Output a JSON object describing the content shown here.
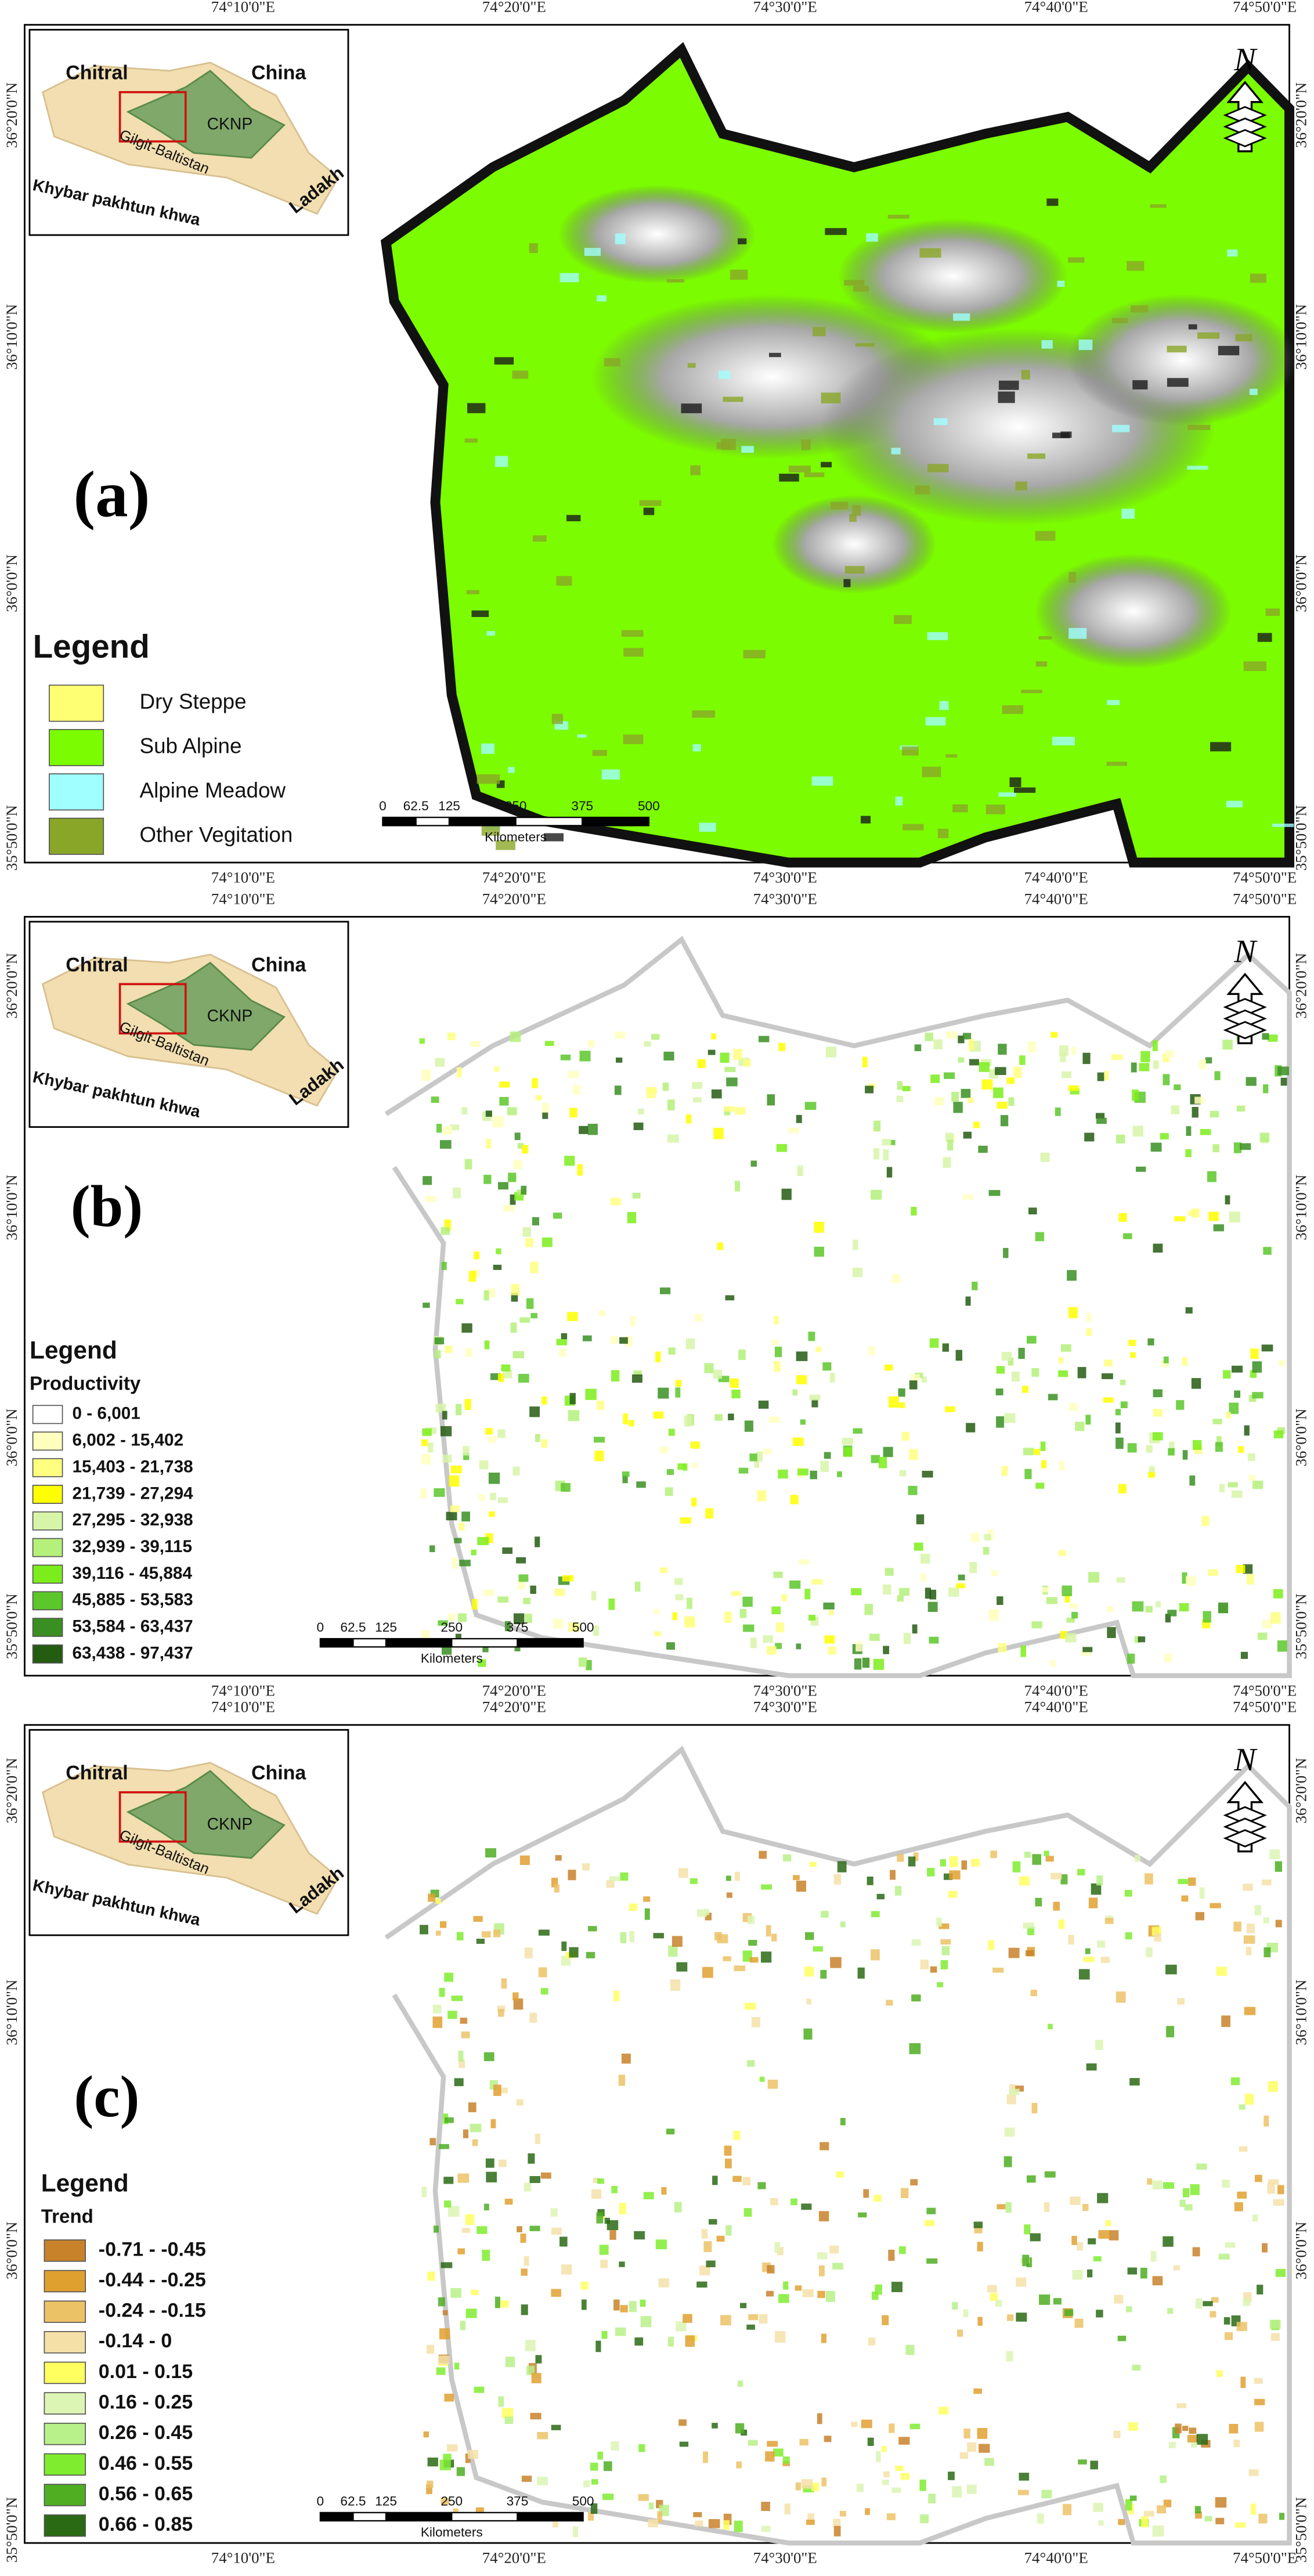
{
  "longitudes": [
    "74°10'0\"E",
    "74°20'0\"E",
    "74°30'0\"E",
    "74°40'0\"E",
    "74°50'0\"E"
  ],
  "latitudes": [
    "36°20'0\"N",
    "36°10'0\"N",
    "36°0'0\"N",
    "35°50'0\"N"
  ],
  "inset_labels": [
    "Chitral",
    "China",
    "CKNP",
    "Gilgit-Baltistan",
    "Khybar pakhtun khwa",
    "Ladakh"
  ],
  "scale_bar": {
    "ticks": [
      "0",
      "62.5",
      "125",
      "250",
      "375",
      "500"
    ],
    "unit": "Kilometers"
  },
  "north": "N",
  "panels": [
    {
      "label": "(a)",
      "legend": {
        "title": "Legend",
        "items": [
          {
            "label": "Dry Steppe",
            "color": "#ffff73"
          },
          {
            "label": "Sub Alpine",
            "color": "#7cfc00"
          },
          {
            "label": "Alpine Meadow",
            "color": "#a0ffff"
          },
          {
            "label": "Other Vegitation",
            "color": "#8aa628"
          }
        ]
      }
    },
    {
      "label": "(b)",
      "legend": {
        "title": "Legend",
        "subtitle": "Productivity",
        "items": [
          {
            "label": "0 - 6,001",
            "color": "#ffffff"
          },
          {
            "label": "6,002 - 15,402",
            "color": "#ffffbe"
          },
          {
            "label": "15,403 - 21,738",
            "color": "#ffff80"
          },
          {
            "label": "21,739 - 27,294",
            "color": "#ffff00"
          },
          {
            "label": "27,295 - 32,938",
            "color": "#d7f5a8"
          },
          {
            "label": "32,939 - 39,115",
            "color": "#b4f07a"
          },
          {
            "label": "39,116 - 45,884",
            "color": "#7ced1c"
          },
          {
            "label": "45,885 - 53,583",
            "color": "#5cc72a"
          },
          {
            "label": "53,584 - 63,437",
            "color": "#3a8f22"
          },
          {
            "label": "63,438 - 97,437",
            "color": "#245c12"
          }
        ]
      }
    },
    {
      "label": "(c)",
      "legend": {
        "title": "Legend",
        "subtitle": "Trend",
        "items": [
          {
            "label": "-0.71 - -0.45",
            "color": "#c8822a"
          },
          {
            "label": "-0.44 - -0.25",
            "color": "#e0a030"
          },
          {
            "label": "-0.24 - -0.15",
            "color": "#ecc266"
          },
          {
            "label": "-0.14 - 0",
            "color": "#f5e0a8"
          },
          {
            "label": "0.01 - 0.15",
            "color": "#ffff60"
          },
          {
            "label": "0.16 - 0.25",
            "color": "#dcf5b4"
          },
          {
            "label": "0.26 - 0.45",
            "color": "#b8f08a"
          },
          {
            "label": "0.46 - 0.55",
            "color": "#80ec30"
          },
          {
            "label": "0.56 - 0.65",
            "color": "#4fae22"
          },
          {
            "label": "0.66 - 0.85",
            "color": "#2a6a14"
          }
        ]
      }
    }
  ]
}
